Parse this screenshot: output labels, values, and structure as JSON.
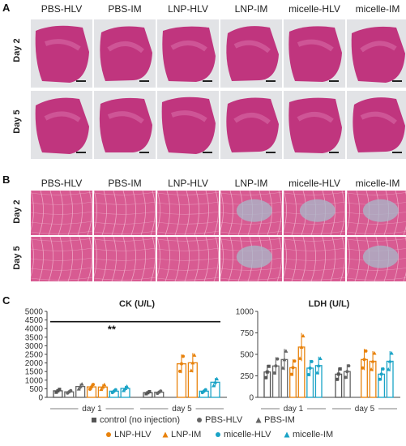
{
  "panel_labels": {
    "a": "A",
    "b": "B",
    "c": "C"
  },
  "groups": [
    "PBS-HLV",
    "PBS-IM",
    "LNP-HLV",
    "LNP-IM",
    "micelle-HLV",
    "micelle-IM"
  ],
  "rows": [
    "Day 2",
    "Day 5"
  ],
  "colors": {
    "he_pink": "#c0357e",
    "he_light": "#d76aa6",
    "slide_bg": "#e2e3e6",
    "muscle_bg": "#d85b92",
    "control": "#555555",
    "pbs": "#666666",
    "lnp": "#e8820c",
    "micelle": "#1aa3c6"
  },
  "chart_data": [
    {
      "type": "bar",
      "title": "CK (U/L)",
      "ylim": [
        0,
        5000
      ],
      "yticks": [
        "0",
        "500",
        "1000",
        "1500",
        "2000",
        "2500",
        "3000",
        "3500",
        "4000",
        "4500",
        "5000"
      ],
      "groups_x": [
        "day 1",
        "day 5"
      ],
      "significance": "**",
      "series": [
        {
          "name": "control (no injection)",
          "color": "#555555",
          "values": [
            380,
            270
          ]
        },
        {
          "name": "PBS-HLV",
          "color": "#666666",
          "values": [
            320,
            300
          ]
        },
        {
          "name": "PBS-IM",
          "color": "#666666",
          "values": [
            630,
            0
          ]
        },
        {
          "name": "LNP-HLV",
          "color": "#e8820c",
          "values": [
            610,
            1950
          ]
        },
        {
          "name": "LNP-IM",
          "color": "#e8820c",
          "values": [
            600,
            2010
          ]
        },
        {
          "name": "micelle-HLV",
          "color": "#1aa3c6",
          "values": [
            360,
            360
          ]
        },
        {
          "name": "micelle-IM",
          "color": "#1aa3c6",
          "values": [
            520,
            880
          ]
        }
      ]
    },
    {
      "type": "bar",
      "title": "LDH (U/L)",
      "ylim": [
        0,
        1000
      ],
      "yticks": [
        "0",
        "250",
        "500",
        "750",
        "1000"
      ],
      "groups_x": [
        "day 1",
        "day 5"
      ],
      "series": [
        {
          "name": "control (no injection)",
          "color": "#555555",
          "values": [
            295,
            270
          ]
        },
        {
          "name": "PBS-HLV",
          "color": "#666666",
          "values": [
            365,
            300
          ]
        },
        {
          "name": "PBS-IM",
          "color": "#666666",
          "values": [
            440,
            0
          ]
        },
        {
          "name": "LNP-HLV",
          "color": "#e8820c",
          "values": [
            345,
            440
          ]
        },
        {
          "name": "LNP-IM",
          "color": "#e8820c",
          "values": [
            585,
            420
          ]
        },
        {
          "name": "micelle-HLV",
          "color": "#1aa3c6",
          "values": [
            340,
            270
          ]
        },
        {
          "name": "micelle-IM",
          "color": "#1aa3c6",
          "values": [
            370,
            420
          ]
        }
      ]
    }
  ],
  "legend": [
    {
      "label": "control (no injection)",
      "color": "#555555",
      "marker": "square"
    },
    {
      "label": "PBS-HLV",
      "color": "#666666",
      "marker": "circle"
    },
    {
      "label": "PBS-IM",
      "color": "#666666",
      "marker": "triangle"
    },
    {
      "label": "LNP-HLV",
      "color": "#e8820c",
      "marker": "circle"
    },
    {
      "label": "LNP-IM",
      "color": "#e8820c",
      "marker": "triangle"
    },
    {
      "label": "micelle-HLV",
      "color": "#1aa3c6",
      "marker": "circle"
    },
    {
      "label": "micelle-IM",
      "color": "#1aa3c6",
      "marker": "triangle"
    }
  ]
}
